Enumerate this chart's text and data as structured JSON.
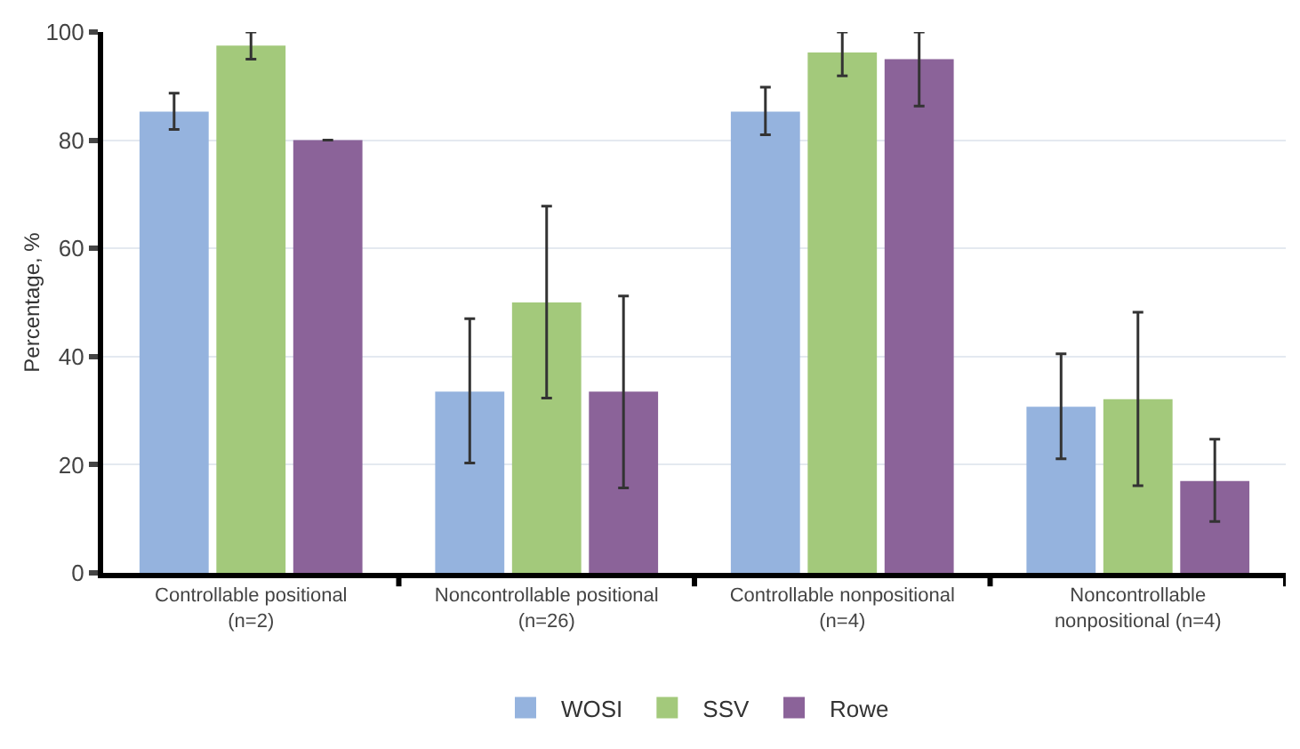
{
  "chart_data": {
    "type": "bar",
    "ylabel": "Percentage, %",
    "categories": [
      "Controllable positional\n(n=2)",
      "Noncontrollable positional\n(n=26)",
      "Controllable nonpositional\n(n=4)",
      "Noncontrollable\nnonpositional (n=4)"
    ],
    "series": [
      {
        "name": "WOSI",
        "color": "#95b3de",
        "values": [
          85.3,
          33.5,
          85.3,
          30.7
        ],
        "errors": [
          [
            82,
            88.7
          ],
          [
            20.3,
            47
          ],
          [
            81,
            89.8
          ],
          [
            21.1,
            40.5
          ]
        ]
      },
      {
        "name": "SSV",
        "color": "#a3c97b",
        "values": [
          97.5,
          50,
          96.2,
          32.1
        ],
        "errors": [
          [
            95,
            100
          ],
          [
            32.3,
            67.8
          ],
          [
            91.9,
            100
          ],
          [
            16.1,
            48.2
          ]
        ]
      },
      {
        "name": "Rowe",
        "color": "#8b6399",
        "values": [
          80,
          33.5,
          95,
          17
        ],
        "errors": [
          [
            80,
            80
          ],
          [
            15.7,
            51.2
          ],
          [
            86.3,
            100
          ],
          [
            9.5,
            24.7
          ]
        ]
      }
    ],
    "ylim": [
      0,
      100
    ],
    "yticks": [
      0,
      20,
      40,
      60,
      80,
      100
    ],
    "grid": "y",
    "legend": "bottom"
  }
}
